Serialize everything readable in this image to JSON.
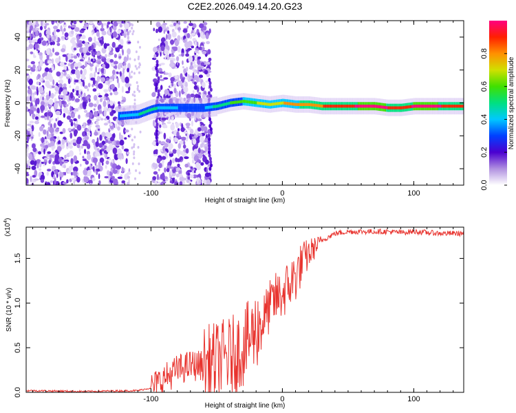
{
  "title": "C2E2.2026.049.14.20.G23",
  "chart_data": [
    {
      "type": "heatmap",
      "xlabel": "Height of straight line (km)",
      "ylabel": "Frequency (Hz)",
      "xlim": [
        -195,
        138
      ],
      "ylim": [
        -50,
        50
      ],
      "xticks": [
        -100,
        0,
        100
      ],
      "xtick_labels": [
        "-100",
        "0",
        "100"
      ],
      "yticks": [
        -40,
        -20,
        0,
        20,
        40
      ],
      "ytick_labels": [
        "-40",
        "-20",
        "0",
        "20",
        "40"
      ],
      "colorbar": {
        "label": "Normalized spectral amplitude",
        "range": [
          0,
          1
        ],
        "ticks": [
          0,
          0.2,
          0.4,
          0.6,
          0.8
        ],
        "tick_labels": [
          "0.0",
          "0.2",
          "0.4",
          "0.6",
          "0.8"
        ]
      },
      "ridge": {
        "x": [
          -125,
          -110,
          -100,
          -95,
          -80,
          -60,
          -50,
          -40,
          -30,
          -20,
          -10,
          0,
          10,
          20,
          30,
          40,
          50,
          60,
          70,
          80,
          90,
          100,
          110,
          120,
          130,
          138
        ],
        "frequency": [
          -8,
          -7,
          -4,
          -3,
          -3,
          -3,
          -2,
          0,
          1,
          0,
          -1,
          0,
          -1,
          -1,
          -2,
          -2,
          -2,
          -2,
          -2,
          -3,
          -3,
          -2,
          -2,
          -2,
          -2,
          -2
        ],
        "amplitude": [
          0.3,
          0.4,
          0.45,
          0.4,
          0.3,
          0.3,
          0.45,
          0.5,
          0.55,
          0.6,
          0.65,
          0.7,
          0.72,
          0.75,
          0.8,
          0.85,
          0.88,
          0.92,
          0.95,
          0.9,
          0.85,
          0.92,
          0.95,
          0.9,
          0.88,
          0.88
        ]
      }
    },
    {
      "type": "line",
      "xlabel": "Height of straight line (km)",
      "ylabel": "SNR (10 * v/v)",
      "y_multiplier_label": "(x10",
      "y_multiplier_exp": "4",
      "xlim": [
        -195,
        138
      ],
      "ylim": [
        0,
        1.85
      ],
      "xticks": [
        -100,
        0,
        100
      ],
      "xtick_labels": [
        "-100",
        "0",
        "100"
      ],
      "yticks": [
        0,
        0.5,
        1.0,
        1.5
      ],
      "ytick_labels": [
        "0.0",
        "0.5",
        "1.0",
        "1.5"
      ],
      "series": [
        {
          "color": "#e8332e",
          "x": [
            -195,
            -150,
            -110,
            -100,
            -95,
            -90,
            -85,
            -80,
            -70,
            -60,
            -50,
            -40,
            -30,
            -25,
            -20,
            -15,
            -10,
            -5,
            0,
            5,
            10,
            15,
            20,
            30,
            40,
            50,
            60,
            70,
            80,
            90,
            100,
            110,
            120,
            130,
            138
          ],
          "y": [
            0.02,
            0.01,
            0.02,
            0.05,
            0.1,
            0.15,
            0.2,
            0.25,
            0.3,
            0.3,
            0.35,
            0.4,
            0.5,
            0.6,
            0.7,
            0.8,
            0.95,
            1.05,
            1.1,
            1.2,
            1.3,
            1.45,
            1.55,
            1.7,
            1.78,
            1.8,
            1.8,
            1.8,
            1.8,
            1.79,
            1.8,
            1.79,
            1.78,
            1.78,
            1.78
          ]
        }
      ]
    }
  ]
}
